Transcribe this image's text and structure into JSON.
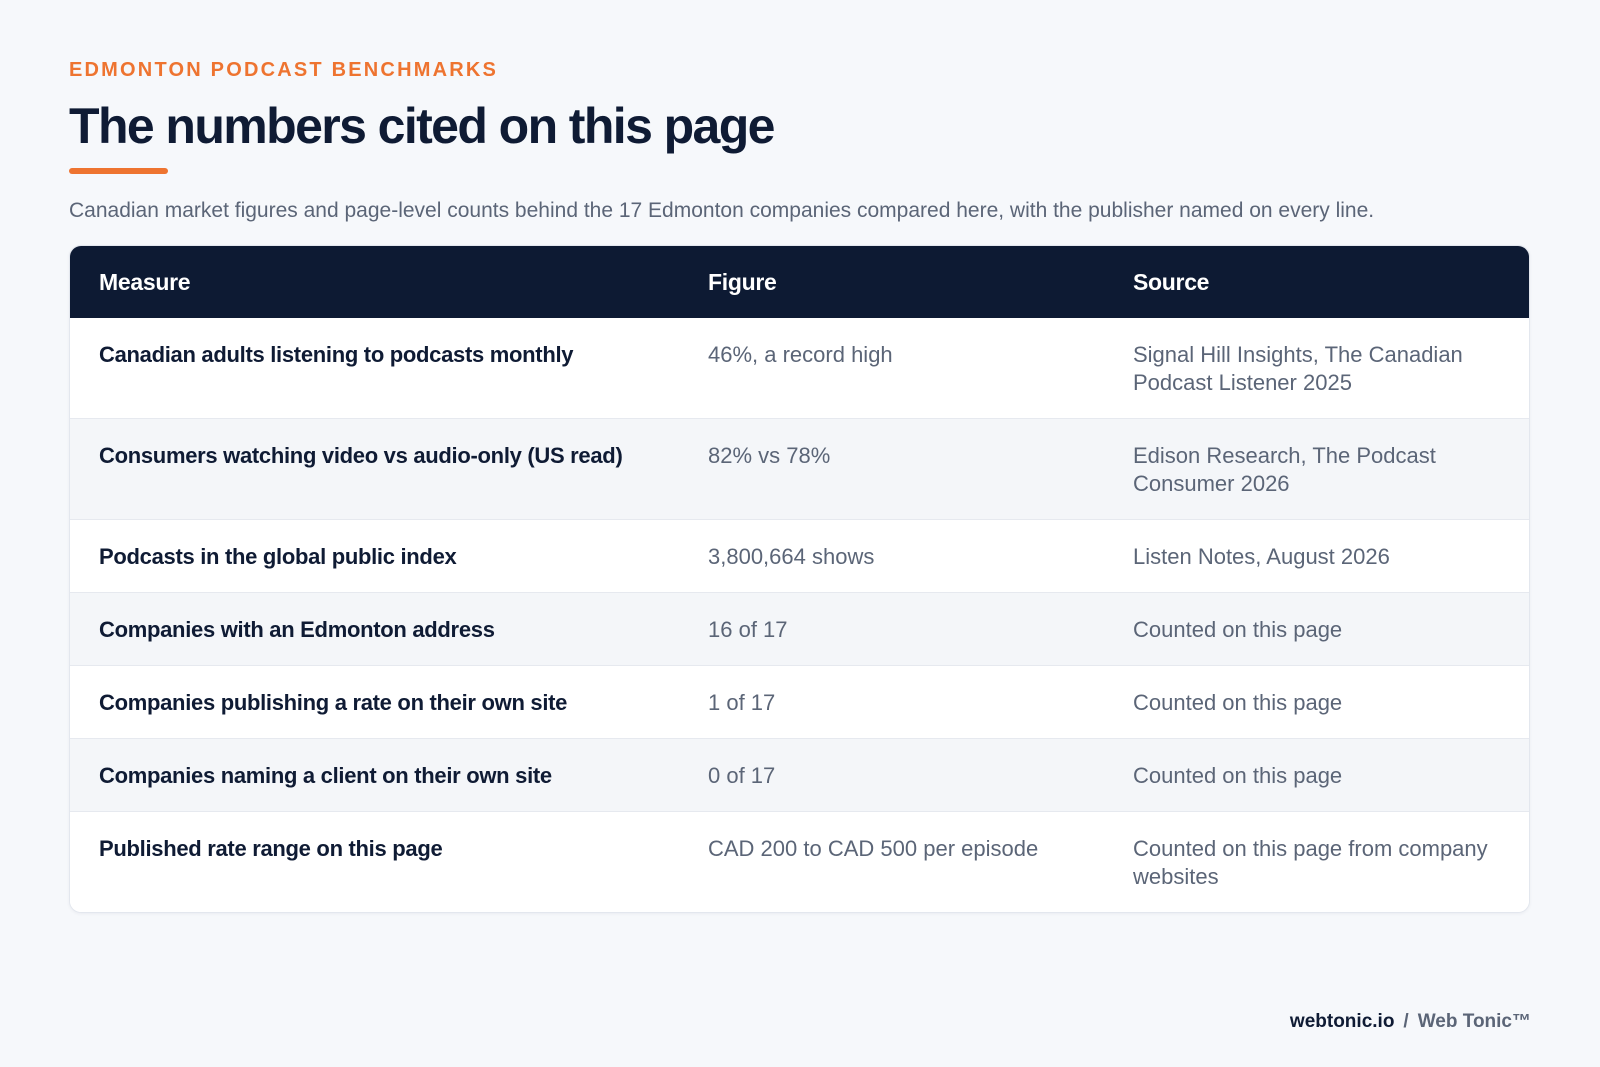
{
  "header": {
    "eyebrow": "EDMONTON PODCAST BENCHMARKS",
    "title": "The numbers cited on this page",
    "subtitle": "Canadian market figures and page-level counts behind the 17 Edmonton companies compared here, with the publisher named on every line."
  },
  "table": {
    "columns": [
      "Measure",
      "Figure",
      "Source"
    ],
    "rows": [
      {
        "measure": "Canadian adults listening to podcasts monthly",
        "figure": "46%, a record high",
        "source": "Signal Hill Insights, The Canadian Podcast Listener 2025"
      },
      {
        "measure": "Consumers watching video vs audio-only (US read)",
        "figure": "82% vs 78%",
        "source": "Edison Research, The Podcast Consumer 2026"
      },
      {
        "measure": "Podcasts in the global public index",
        "figure": "3,800,664 shows",
        "source": "Listen Notes, August 2026"
      },
      {
        "measure": "Companies with an Edmonton address",
        "figure": "16 of 17",
        "source": "Counted on this page"
      },
      {
        "measure": "Companies publishing a rate on their own site",
        "figure": "1 of 17",
        "source": "Counted on this page"
      },
      {
        "measure": "Companies naming a client on their own site",
        "figure": "0 of 17",
        "source": "Counted on this page"
      },
      {
        "measure": "Published rate range on this page",
        "figure": "CAD 200 to CAD 500 per episode",
        "source": "Counted on this page from company websites"
      }
    ]
  },
  "footer": {
    "domain": "webtonic.io",
    "separator": "/",
    "brand": "Web Tonic™"
  },
  "colors": {
    "accent": "#ee7430",
    "header_bg": "#0d1a33",
    "text_dark": "#0f1b34",
    "text_muted": "#5b6577",
    "page_bg": "#f6f8fb",
    "row_alt": "#f4f6f9"
  }
}
